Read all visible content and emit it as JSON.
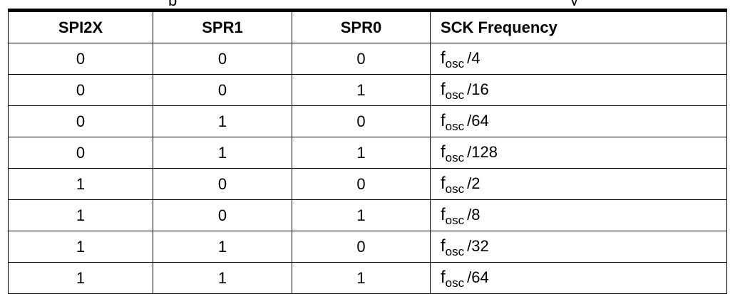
{
  "top_fragment": {
    "left": "p",
    "right": "y"
  },
  "table": {
    "headers": [
      "SPI2X",
      "SPR1",
      "SPR0",
      "SCK Frequency"
    ],
    "rows": [
      {
        "spi2x": "0",
        "spr1": "0",
        "spr0": "0",
        "freq_base": "f",
        "freq_sub": "osc",
        "freq_div": "/4"
      },
      {
        "spi2x": "0",
        "spr1": "0",
        "spr0": "1",
        "freq_base": "f",
        "freq_sub": "osc",
        "freq_div": "/16"
      },
      {
        "spi2x": "0",
        "spr1": "1",
        "spr0": "0",
        "freq_base": "f",
        "freq_sub": "osc",
        "freq_div": "/64"
      },
      {
        "spi2x": "0",
        "spr1": "1",
        "spr0": "1",
        "freq_base": "f",
        "freq_sub": "osc",
        "freq_div": "/128"
      },
      {
        "spi2x": "1",
        "spr1": "0",
        "spr0": "0",
        "freq_base": "f",
        "freq_sub": "osc",
        "freq_div": "/2"
      },
      {
        "spi2x": "1",
        "spr1": "0",
        "spr0": "1",
        "freq_base": "f",
        "freq_sub": "osc",
        "freq_div": "/8"
      },
      {
        "spi2x": "1",
        "spr1": "1",
        "spr0": "0",
        "freq_base": "f",
        "freq_sub": "osc",
        "freq_div": "/32"
      },
      {
        "spi2x": "1",
        "spr1": "1",
        "spr0": "1",
        "freq_base": "f",
        "freq_sub": "osc",
        "freq_div": "/64"
      }
    ]
  }
}
